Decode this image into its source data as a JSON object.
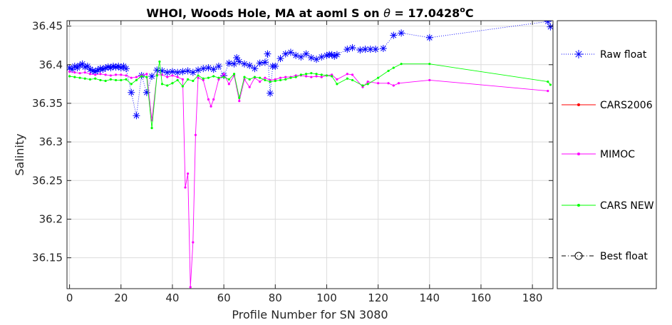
{
  "chart_data": {
    "type": "line",
    "title": {
      "prefix": "WHOI, Woods Hole, MA at aoml S on ",
      "theta": "θ",
      "middle": " = 17.0428",
      "degree": "o",
      "unit": "C"
    },
    "xlabel": "Profile Number for SN 3080",
    "ylabel": "Salinity",
    "xlim": [
      -1,
      188
    ],
    "ylim": [
      36.11,
      36.457
    ],
    "xticks": [
      0,
      20,
      40,
      60,
      80,
      100,
      120,
      140,
      160,
      180
    ],
    "yticks": [
      36.15,
      36.2,
      36.25,
      36.3,
      36.35,
      36.4,
      36.45
    ],
    "ytick_labels": [
      "36.15",
      "36.2",
      "36.25",
      "36.3",
      "36.35",
      "36.4",
      "36.45"
    ],
    "grid": true,
    "legend_position": "outside-right",
    "series": [
      {
        "name": "Raw float",
        "color": "#0000ff",
        "line": "dotted",
        "marker": "asterisk",
        "x": [
          0,
          1,
          2,
          3,
          4,
          5,
          6,
          7,
          8,
          9,
          10,
          11,
          12,
          13,
          14,
          15,
          16,
          17,
          18,
          19,
          20,
          21,
          22,
          24,
          26,
          28,
          30,
          32,
          34,
          36,
          38,
          40,
          42,
          44,
          46,
          48,
          50,
          52,
          54,
          56,
          58,
          60,
          62,
          64,
          65,
          66,
          68,
          70,
          72,
          74,
          76,
          77,
          78,
          79,
          80,
          82,
          84,
          86,
          88,
          90,
          92,
          94,
          96,
          98,
          100,
          101,
          102,
          103,
          104,
          108,
          110,
          113,
          115,
          117,
          119,
          122,
          126,
          129,
          140,
          186,
          187
        ],
        "y": [
          36.396,
          36.394,
          36.398,
          36.396,
          36.399,
          36.401,
          36.397,
          36.398,
          36.394,
          36.392,
          36.391,
          36.393,
          36.395,
          36.394,
          36.396,
          36.397,
          36.396,
          36.398,
          36.397,
          36.398,
          36.396,
          36.398,
          36.395,
          36.364,
          36.334,
          36.386,
          36.364,
          36.385,
          36.393,
          36.392,
          36.39,
          36.391,
          36.39,
          36.391,
          36.392,
          36.39,
          36.393,
          36.395,
          36.396,
          36.394,
          36.398,
          36.386,
          36.402,
          36.401,
          36.409,
          36.404,
          36.401,
          36.399,
          36.395,
          36.402,
          36.403,
          36.414,
          36.363,
          36.398,
          36.398,
          36.408,
          36.414,
          36.416,
          36.412,
          36.41,
          36.414,
          36.409,
          36.407,
          36.41,
          36.412,
          36.413,
          36.413,
          36.411,
          36.413,
          36.42,
          36.422,
          36.419,
          36.42,
          36.42,
          36.42,
          36.421,
          36.438,
          36.441,
          36.435,
          36.456,
          36.449
        ]
      },
      {
        "name": "CARS2006",
        "color": "#ff0000",
        "line": "solid",
        "marker": "dot",
        "x": [],
        "y": []
      },
      {
        "name": "MIMOC",
        "color": "#ff00ff",
        "line": "solid",
        "marker": "dot",
        "x": [
          0,
          2,
          4,
          6,
          8,
          10,
          12,
          14,
          16,
          18,
          20,
          22,
          24,
          26,
          28,
          30,
          32,
          34,
          36,
          38,
          40,
          42,
          44,
          45,
          46,
          47,
          48,
          49,
          50,
          52,
          54,
          55,
          56,
          58,
          60,
          62,
          64,
          66,
          68,
          70,
          72,
          74,
          76,
          78,
          80,
          82,
          84,
          86,
          88,
          90,
          92,
          94,
          96,
          98,
          100,
          102,
          104,
          108,
          110,
          114,
          116,
          120,
          124,
          126,
          128,
          140,
          186
        ],
        "y": [
          36.391,
          36.39,
          36.389,
          36.39,
          36.388,
          36.387,
          36.388,
          36.387,
          36.386,
          36.387,
          36.387,
          36.386,
          36.383,
          36.384,
          36.386,
          36.388,
          36.328,
          36.387,
          36.387,
          36.384,
          36.386,
          36.384,
          36.381,
          36.241,
          36.259,
          36.112,
          36.17,
          36.309,
          36.383,
          36.38,
          36.355,
          36.346,
          36.355,
          36.381,
          36.388,
          36.375,
          36.386,
          36.353,
          36.381,
          36.371,
          36.383,
          36.378,
          36.383,
          36.38,
          36.381,
          36.383,
          36.384,
          36.384,
          36.386,
          36.386,
          36.385,
          36.384,
          36.385,
          36.384,
          36.386,
          36.387,
          36.381,
          36.388,
          36.387,
          36.371,
          36.378,
          36.376,
          36.376,
          36.373,
          36.376,
          36.38,
          36.366
        ]
      },
      {
        "name": "CARS NEW",
        "color": "#00ff00",
        "line": "solid",
        "marker": "dot",
        "x": [
          0,
          2,
          4,
          6,
          8,
          10,
          12,
          14,
          16,
          18,
          20,
          22,
          24,
          26,
          28,
          30,
          32,
          34,
          35,
          36,
          38,
          40,
          42,
          44,
          46,
          48,
          50,
          52,
          54,
          56,
          58,
          60,
          62,
          64,
          66,
          68,
          70,
          72,
          74,
          76,
          78,
          80,
          82,
          84,
          86,
          88,
          90,
          92,
          94,
          96,
          98,
          100,
          102,
          104,
          108,
          110,
          114,
          116,
          120,
          124,
          126,
          129,
          140,
          186,
          187
        ],
        "y": [
          36.385,
          36.384,
          36.383,
          36.382,
          36.381,
          36.382,
          36.38,
          36.379,
          36.381,
          36.38,
          36.38,
          36.381,
          36.375,
          36.38,
          36.385,
          36.384,
          36.318,
          36.386,
          36.404,
          36.375,
          36.373,
          36.376,
          36.38,
          36.372,
          36.381,
          36.379,
          36.386,
          36.382,
          36.383,
          36.385,
          36.383,
          36.384,
          36.381,
          36.388,
          36.357,
          36.384,
          36.381,
          36.384,
          36.383,
          36.38,
          36.378,
          36.379,
          36.38,
          36.381,
          36.383,
          36.384,
          36.387,
          36.388,
          36.389,
          36.388,
          36.387,
          36.386,
          36.385,
          36.375,
          36.382,
          36.38,
          36.373,
          36.375,
          36.383,
          36.392,
          36.396,
          36.401,
          36.401,
          36.378,
          36.374
        ]
      },
      {
        "name": "Best float",
        "color": "#000000",
        "line": "dashdot",
        "marker": "circle",
        "x": [],
        "y": []
      }
    ]
  }
}
